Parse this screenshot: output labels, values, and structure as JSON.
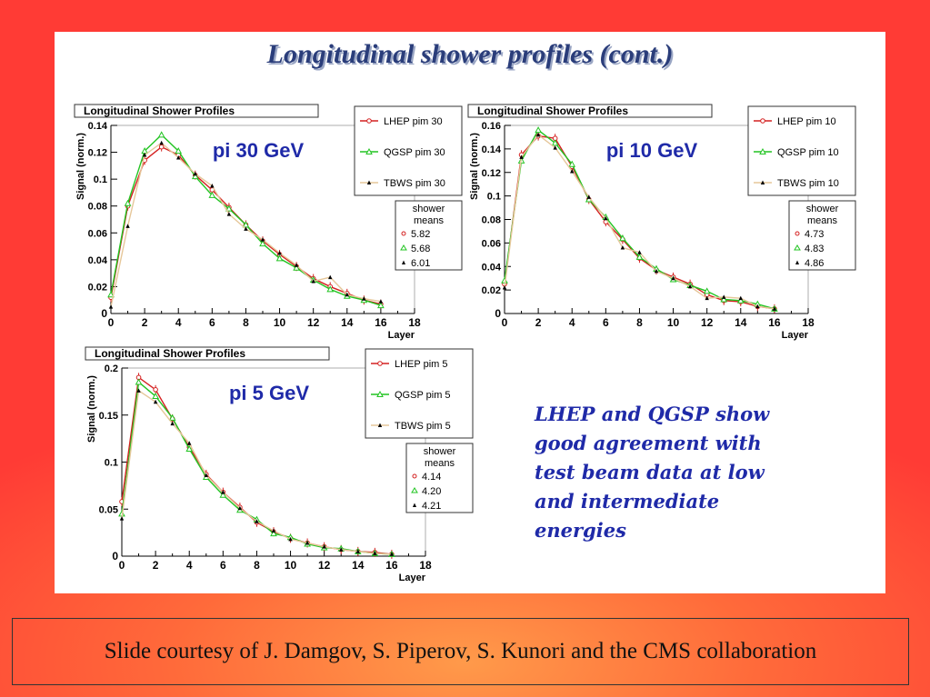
{
  "slide": {
    "title": "Longitudinal shower profiles (cont.)",
    "note": "LHEP and QGSP show good agreement with test beam data at low and intermediate energies",
    "credit": "Slide courtesy of J. Damgov, S. Piperov, S. Kunori and the CMS collaboration"
  },
  "colors": {
    "lhep": "#d42020",
    "qgsp": "#22c422",
    "tbws": "#000000",
    "tbws_line": "#e6c79a",
    "label": "#1f2aa8"
  },
  "chart_data": [
    {
      "type": "line",
      "title": "Longitudinal Shower Profiles",
      "energy_label": "pi 30 GeV",
      "xlabel": "Layer",
      "ylabel": "Signal (norm.)",
      "xlim": [
        0,
        18
      ],
      "ylim": [
        0,
        0.14
      ],
      "xticks": [
        "0",
        "2",
        "4",
        "6",
        "8",
        "10",
        "12",
        "14",
        "16",
        "18"
      ],
      "yticks": [
        0.02,
        0.04,
        0.06,
        0.08,
        0.1,
        0.12,
        0.14
      ],
      "ytick_labels": [
        "0.02",
        "0.04",
        "0.06",
        "0.08",
        "0.1",
        "0.12",
        "0.14"
      ],
      "x": [
        0,
        1,
        2,
        3,
        4,
        5,
        6,
        7,
        8,
        9,
        10,
        11,
        12,
        13,
        14,
        15,
        16
      ],
      "series": [
        {
          "name": "LHEP pim 30",
          "values": [
            0.012,
            0.08,
            0.114,
            0.124,
            0.118,
            0.103,
            0.092,
            0.079,
            0.066,
            0.054,
            0.044,
            0.035,
            0.026,
            0.02,
            0.015,
            0.01,
            0.007
          ]
        },
        {
          "name": "QGSP pim 30",
          "values": [
            0.014,
            0.082,
            0.121,
            0.133,
            0.121,
            0.102,
            0.088,
            0.078,
            0.066,
            0.052,
            0.041,
            0.034,
            0.025,
            0.018,
            0.013,
            0.01,
            0.006
          ]
        },
        {
          "name": "TBWS pim 30",
          "values": [
            0.005,
            0.065,
            0.118,
            0.127,
            0.116,
            0.104,
            0.095,
            0.074,
            0.063,
            0.055,
            0.045,
            0.036,
            0.024,
            0.027,
            0.014,
            0.011,
            0.009
          ]
        }
      ],
      "means_label": [
        "shower",
        "means"
      ],
      "means": [
        "5.82",
        "5.68",
        "6.01"
      ]
    },
    {
      "type": "line",
      "title": "Longitudinal Shower Profiles",
      "energy_label": "pi 10 GeV",
      "xlabel": "Layer",
      "ylabel": "Signal (norm.)",
      "xlim": [
        0,
        18
      ],
      "ylim": [
        0,
        0.16
      ],
      "xticks": [
        "0",
        "2",
        "4",
        "6",
        "8",
        "10",
        "12",
        "14",
        "16",
        "18"
      ],
      "yticks": [
        0.02,
        0.04,
        0.06,
        0.08,
        0.1,
        0.12,
        0.14,
        0.16
      ],
      "ytick_labels": [
        "0.02",
        "0.04",
        "0.06",
        "0.08",
        "0.1",
        "0.12",
        "0.14",
        "0.16"
      ],
      "x": [
        0,
        1,
        2,
        3,
        4,
        5,
        6,
        7,
        8,
        9,
        10,
        11,
        12,
        13,
        14,
        15,
        16
      ],
      "series": [
        {
          "name": "LHEP pim 10",
          "values": [
            0.025,
            0.135,
            0.151,
            0.149,
            0.125,
            0.097,
            0.078,
            0.063,
            0.047,
            0.037,
            0.031,
            0.025,
            0.016,
            0.011,
            0.01,
            0.006,
            0.004
          ]
        },
        {
          "name": "QGSP pim 10",
          "values": [
            0.028,
            0.13,
            0.156,
            0.145,
            0.127,
            0.097,
            0.082,
            0.064,
            0.048,
            0.038,
            0.029,
            0.024,
            0.019,
            0.012,
            0.011,
            0.008,
            0.004
          ]
        },
        {
          "name": "TBWS pim 10",
          "values": [
            0.022,
            0.133,
            0.152,
            0.141,
            0.121,
            0.099,
            0.081,
            0.056,
            0.052,
            0.036,
            0.03,
            0.023,
            0.013,
            0.014,
            0.013,
            0.006,
            0.004
          ]
        }
      ],
      "means_label": [
        "shower",
        "means"
      ],
      "means": [
        "4.73",
        "4.83",
        "4.86"
      ]
    },
    {
      "type": "line",
      "title": "Longitudinal Shower Profiles",
      "energy_label": "pi 5 GeV",
      "xlabel": "Layer",
      "ylabel": "Signal (norm.)",
      "xlim": [
        0,
        18
      ],
      "ylim": [
        0,
        0.2
      ],
      "xticks": [
        "0",
        "2",
        "4",
        "6",
        "8",
        "10",
        "12",
        "14",
        "16",
        "18"
      ],
      "yticks": [
        0.05,
        0.1,
        0.15,
        0.2
      ],
      "ytick_labels": [
        "0.05",
        "0.1",
        "0.15",
        "0.2"
      ],
      "x": [
        0,
        1,
        2,
        3,
        4,
        5,
        6,
        7,
        8,
        9,
        10,
        11,
        12,
        13,
        14,
        15,
        16
      ],
      "series": [
        {
          "name": "LHEP pim 5",
          "values": [
            0.058,
            0.19,
            0.177,
            0.146,
            0.116,
            0.087,
            0.068,
            0.052,
            0.036,
            0.026,
            0.019,
            0.014,
            0.01,
            0.007,
            0.005,
            0.004,
            0.002
          ]
        },
        {
          "name": "QGSP pim 5",
          "values": [
            0.045,
            0.185,
            0.17,
            0.147,
            0.114,
            0.084,
            0.065,
            0.049,
            0.039,
            0.024,
            0.02,
            0.013,
            0.009,
            0.008,
            0.005,
            0.003,
            0.002
          ]
        },
        {
          "name": "TBWS pim 5",
          "values": [
            0.04,
            0.176,
            0.164,
            0.141,
            0.12,
            0.086,
            0.068,
            0.051,
            0.037,
            0.027,
            0.018,
            0.014,
            0.01,
            0.007,
            0.005,
            0.003,
            0.002
          ]
        }
      ],
      "means_label": [
        "shower",
        "means"
      ],
      "means": [
        "4.14",
        "4.20",
        "4.21"
      ]
    }
  ]
}
